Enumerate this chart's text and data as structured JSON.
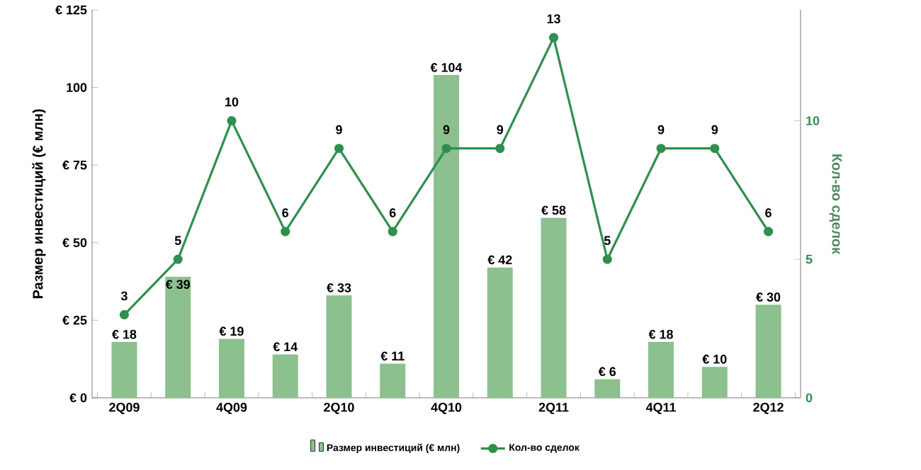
{
  "chart_data": {
    "type": "bar",
    "categories": [
      "2Q09",
      null,
      "4Q09",
      null,
      "2Q10",
      null,
      "4Q10",
      null,
      "2Q11",
      null,
      "4Q11",
      null,
      "2Q12"
    ],
    "ylabel": "Размер инвестиций (€ млн)",
    "y2label": "Кол-во сделок",
    "series": [
      {
        "name": "Размер инвестиций (€ млн)",
        "color": "#8cc08f",
        "values": [
          18,
          39,
          19,
          14,
          33,
          11,
          104,
          42,
          58,
          6,
          18,
          10,
          30
        ],
        "value_labels": [
          "€ 18",
          "€ 39",
          "€ 19",
          "€ 14",
          "€ 33",
          "€ 11",
          "€ 104",
          "€ 42",
          "€ 58",
          "€ 6",
          "€ 18",
          "€ 10",
          "€ 30"
        ]
      },
      {
        "name": "Кол-во сделок",
        "type": "line",
        "axis": "y2",
        "color": "#2f8f4e",
        "marker": "circle",
        "values": [
          3,
          5,
          10,
          6,
          9,
          6,
          9,
          9,
          13,
          5,
          9,
          9,
          6
        ],
        "value_labels": [
          "3",
          "5",
          "10",
          "6",
          "9",
          "6",
          "9",
          "9",
          "13",
          "5",
          "9",
          "9",
          "6"
        ]
      }
    ],
    "ylim": [
      0,
      125
    ],
    "yticks": [
      {
        "value": 0,
        "label": "€ 0"
      },
      {
        "value": 25,
        "label": "€ 25"
      },
      {
        "value": 50,
        "label": "€ 50"
      },
      {
        "value": 75,
        "label": "€ 75"
      },
      {
        "value": 100,
        "label": "100"
      },
      {
        "value": 125,
        "label": "€ 125"
      }
    ],
    "y2lim": [
      0,
      14
    ],
    "y2ticks": [
      0,
      5,
      10
    ],
    "grid": false,
    "legend": "bottom"
  }
}
